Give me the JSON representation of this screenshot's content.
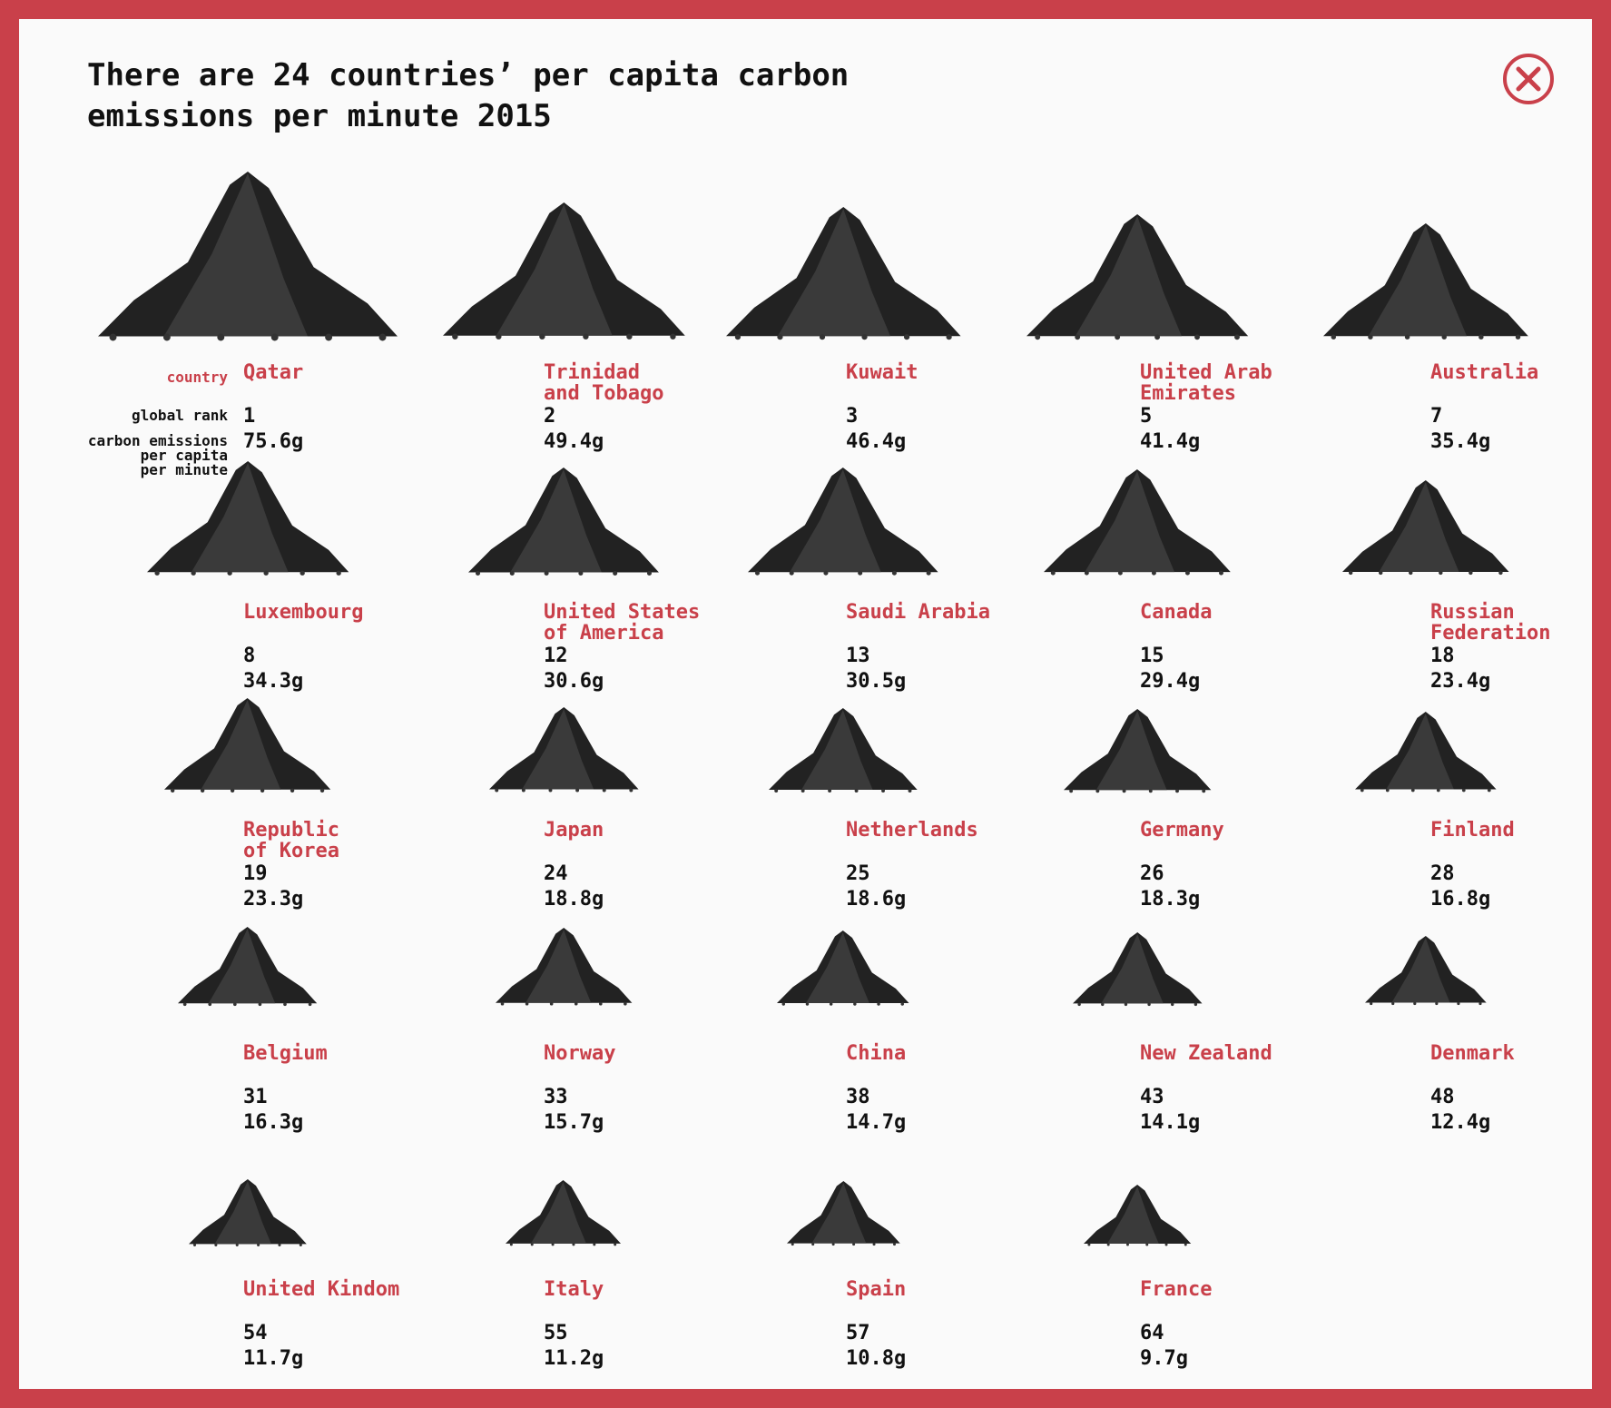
{
  "title": "There are 24 countries’ per capita carbon emissions per minute 2015",
  "close_icon": "close-circle-x-icon",
  "accent_color": "#c9404a",
  "legend": {
    "country": "country",
    "global_rank": "global rank",
    "emissions": "carbon emissions\nper capita\nper minute"
  },
  "unit": "g",
  "countries": [
    {
      "name": "Qatar",
      "rank": "1",
      "value": "75.6g",
      "grams": 75.6
    },
    {
      "name": "Trinidad\nand Tobago",
      "rank": "2",
      "value": "49.4g",
      "grams": 49.4
    },
    {
      "name": "Kuwait",
      "rank": "3",
      "value": "46.4g",
      "grams": 46.4
    },
    {
      "name": "United Arab\nEmirates",
      "rank": "5",
      "value": "41.4g",
      "grams": 41.4
    },
    {
      "name": "Australia",
      "rank": "7",
      "value": "35.4g",
      "grams": 35.4
    },
    {
      "name": "Luxembourg",
      "rank": "8",
      "value": "34.3g",
      "grams": 34.3
    },
    {
      "name": "United States\nof America",
      "rank": "12",
      "value": "30.6g",
      "grams": 30.6
    },
    {
      "name": "Saudi Arabia",
      "rank": "13",
      "value": "30.5g",
      "grams": 30.5
    },
    {
      "name": "Canada",
      "rank": "15",
      "value": "29.4g",
      "grams": 29.4
    },
    {
      "name": "Russian\nFederation",
      "rank": "18",
      "value": "23.4g",
      "grams": 23.4
    },
    {
      "name": "Republic\nof Korea",
      "rank": "19",
      "value": "23.3g",
      "grams": 23.3
    },
    {
      "name": "Japan",
      "rank": "24",
      "value": "18.8g",
      "grams": 18.8
    },
    {
      "name": "Netherlands",
      "rank": "25",
      "value": "18.6g",
      "grams": 18.6
    },
    {
      "name": "Germany",
      "rank": "26",
      "value": "18.3g",
      "grams": 18.3
    },
    {
      "name": "Finland",
      "rank": "28",
      "value": "16.8g",
      "grams": 16.8
    },
    {
      "name": "Belgium",
      "rank": "31",
      "value": "16.3g",
      "grams": 16.3
    },
    {
      "name": "Norway",
      "rank": "33",
      "value": "15.7g",
      "grams": 15.7
    },
    {
      "name": "China",
      "rank": "38",
      "value": "14.7g",
      "grams": 14.7
    },
    {
      "name": "New Zealand",
      "rank": "43",
      "value": "14.1g",
      "grams": 14.1
    },
    {
      "name": "Denmark",
      "rank": "48",
      "value": "12.4g",
      "grams": 12.4
    },
    {
      "name": "United Kindom",
      "rank": "54",
      "value": "11.7g",
      "grams": 11.7
    },
    {
      "name": "Italy",
      "rank": "55",
      "value": "11.2g",
      "grams": 11.2
    },
    {
      "name": "Spain",
      "rank": "57",
      "value": "10.8g",
      "grams": 10.8
    },
    {
      "name": "France",
      "rank": "64",
      "value": "9.7g",
      "grams": 9.7
    }
  ]
}
